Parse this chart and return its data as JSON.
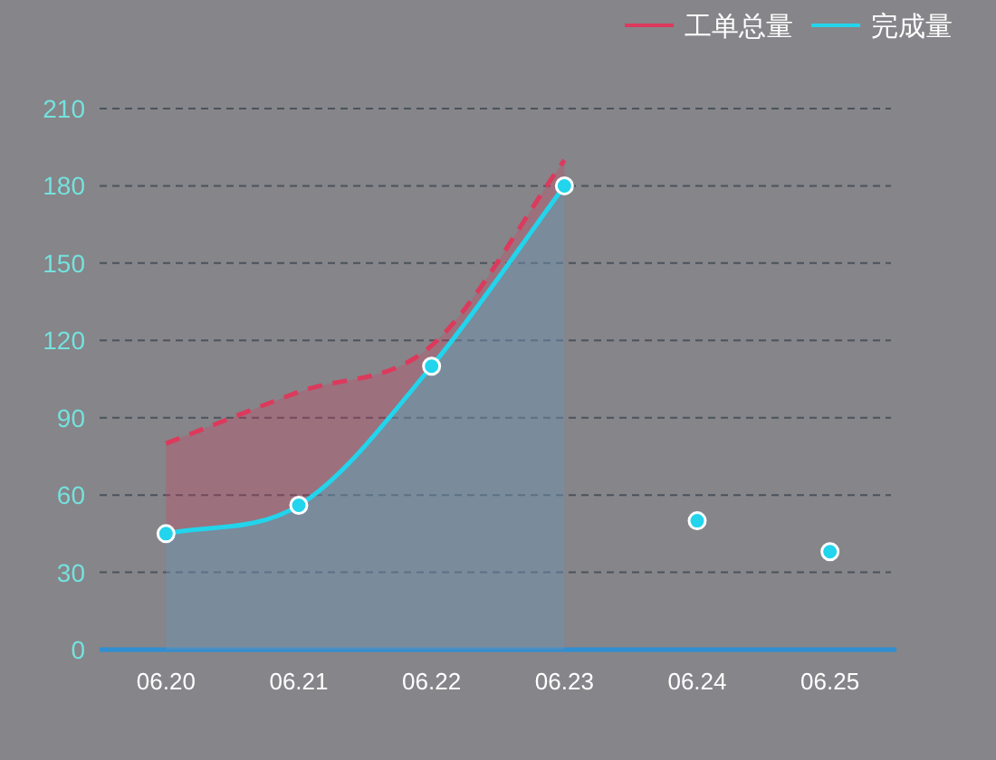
{
  "chart_data": {
    "type": "area",
    "categories": [
      "06.20",
      "06.21",
      "06.22",
      "06.23",
      "06.24",
      "06.25"
    ],
    "series": [
      {
        "name": "工单总量",
        "color": "#dc3a5c",
        "line_style": "dashed",
        "values": [
          80,
          100,
          118,
          190,
          null,
          null
        ]
      },
      {
        "name": "完成量",
        "color": "#22d4ec",
        "marker": "circle",
        "values": [
          45,
          56,
          110,
          180,
          null,
          null
        ]
      },
      {
        "type": "scatter",
        "color": "#22d4ec",
        "marker": "circle",
        "values": [
          null,
          null,
          null,
          null,
          50,
          38
        ]
      }
    ],
    "ylim": [
      0,
      210
    ],
    "yticks": [
      0,
      30,
      60,
      90,
      120,
      150,
      180,
      210
    ],
    "grid": "y",
    "legend": "top right"
  }
}
